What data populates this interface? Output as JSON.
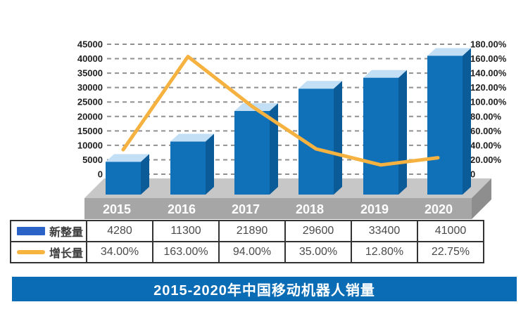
{
  "title_bar": {
    "text": "2015-2020年中国移动机器人销量"
  },
  "legend": [
    {
      "label": "新整量",
      "swatch": "bar",
      "color": "#2b63c6"
    },
    {
      "label": "增长量",
      "swatch": "line",
      "color": "#f6b33e"
    }
  ],
  "table": {
    "rows": [
      {
        "label": "新整量",
        "values": [
          "4280",
          "11300",
          "21890",
          "29600",
          "33400",
          "41000"
        ]
      },
      {
        "label": "增长量",
        "values": [
          "34.00%",
          "163.00%",
          "94.00%",
          "35.00%",
          "12.80%",
          "22.75%"
        ]
      }
    ]
  },
  "chart_data": {
    "type": "combo",
    "title": "2015-2020年中国移动机器人销量",
    "categories": [
      "2015",
      "2016",
      "2017",
      "2018",
      "2019",
      "2020"
    ],
    "series": [
      {
        "name": "新整量",
        "type": "bar",
        "axis": "left",
        "values": [
          4280,
          11300,
          21890,
          29600,
          33400,
          41000
        ]
      },
      {
        "name": "增长量",
        "type": "line",
        "axis": "right",
        "values": [
          34.0,
          163.0,
          94.0,
          35.0,
          12.8,
          22.75
        ],
        "unit": "%"
      }
    ],
    "left_axis": {
      "min": 0,
      "max": 45000,
      "step": 5000,
      "tick_labels": [
        "45000",
        "40000",
        "35000",
        "30000",
        "25000",
        "20000",
        "15000",
        "10000",
        "5000",
        "0"
      ]
    },
    "right_axis": {
      "min": 0,
      "max": 180,
      "step": 20,
      "tick_labels": [
        "180.00%",
        "160.00%",
        "140.00%",
        "120.00%",
        "100.00%",
        "80.00%",
        "60.00%",
        "40.00%",
        "20.00%",
        "0"
      ]
    },
    "grid": {
      "style": "dashed",
      "orientation": "horizontal"
    },
    "legend_position": "table-left",
    "style": "3d-bars-on-gray-platform"
  },
  "colors": {
    "bar_front": "#1171b8",
    "bar_top": "#c2dff5",
    "bar_side": "#0b5b99",
    "line": "#f5b240",
    "platform_top": "#c7c7c7",
    "platform_front": "#a6a6a6",
    "platform_side": "#8e8e8e",
    "grid": "#909090",
    "axis_text": "#1f1f1f",
    "year_text": "#ffffff",
    "banner_bg": "#0a6cb5",
    "table_border": "#333333"
  }
}
